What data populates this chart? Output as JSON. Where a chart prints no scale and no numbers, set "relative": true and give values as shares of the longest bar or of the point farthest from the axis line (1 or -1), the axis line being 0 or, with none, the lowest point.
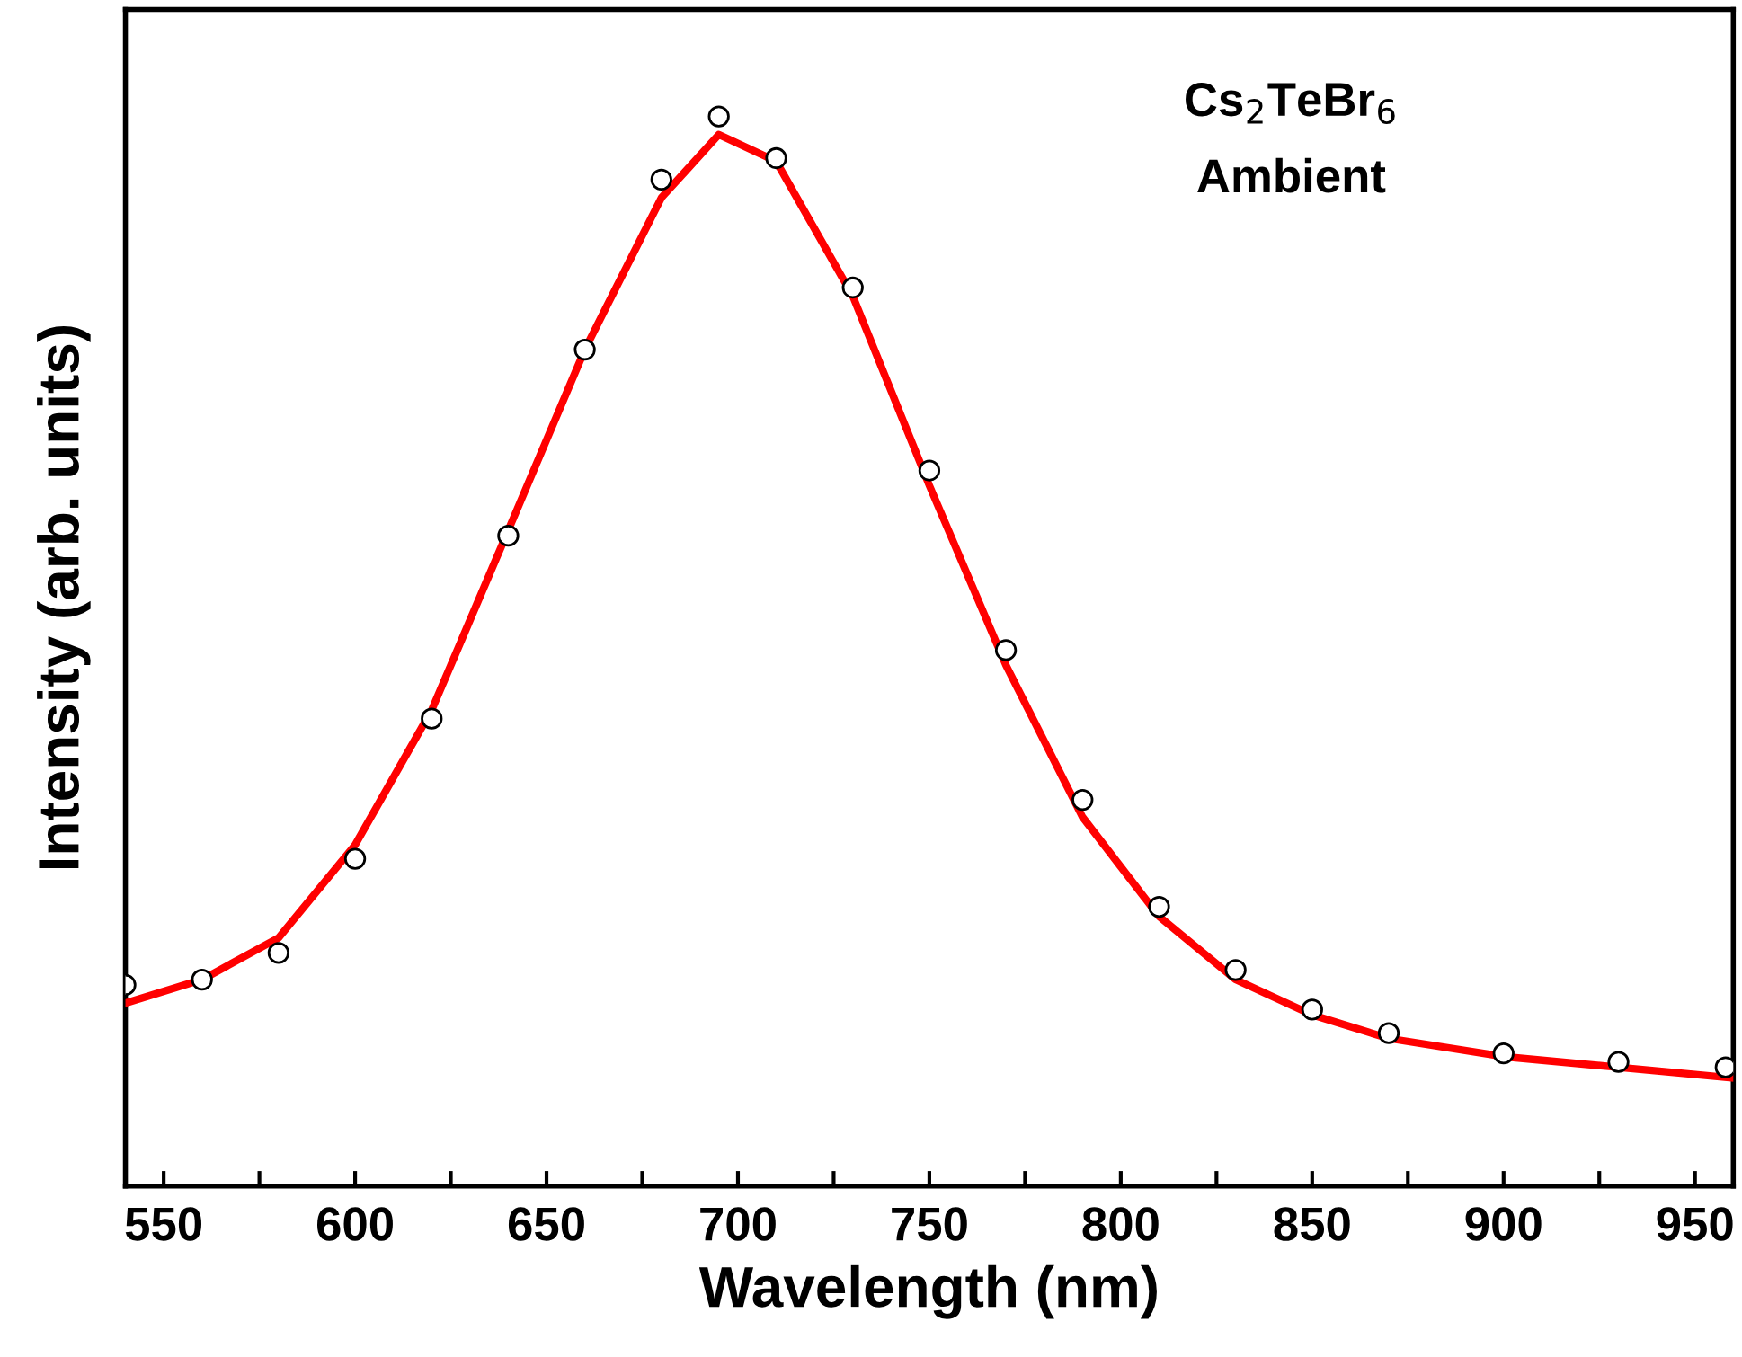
{
  "chart_data": {
    "type": "scatter",
    "xlabel": "Wavelength (nm)",
    "ylabel": "Intensity (arb. units)",
    "relative": true,
    "tick_labels": "x",
    "xlim": [
      540,
      960
    ],
    "xticks": [
      550,
      {
        "value": 575,
        "label": null
      },
      600,
      {
        "value": 625,
        "label": null
      },
      650,
      {
        "value": 675,
        "label": null
      },
      700,
      {
        "value": 725,
        "label": null
      },
      750,
      {
        "value": 775,
        "label": null
      },
      800,
      {
        "value": 825,
        "label": null
      },
      850,
      {
        "value": 875,
        "label": null
      },
      900,
      {
        "value": 925,
        "label": null
      },
      950
    ],
    "annotations": [
      "Cs$_{2}$TeBr$_{6}$",
      "Ambient"
    ],
    "series": [
      {
        "marker": "circle",
        "color": "#000000",
        "x": [
          540,
          560,
          580,
          600,
          620,
          640,
          660,
          680,
          695,
          710,
          730,
          750,
          770,
          790,
          810,
          830,
          850,
          870,
          900,
          930,
          958
        ],
        "values": [
          0.188,
          0.193,
          0.218,
          0.306,
          0.437,
          0.608,
          0.782,
          0.941,
          1.0,
          0.961,
          0.84,
          0.669,
          0.501,
          0.361,
          0.261,
          0.202,
          0.165,
          0.143,
          0.124,
          0.116,
          0.111
        ]
      },
      {
        "type": "line",
        "color": "#ff0000",
        "x": [
          540,
          560,
          580,
          600,
          620,
          640,
          660,
          680,
          695,
          710,
          730,
          750,
          770,
          790,
          810,
          830,
          850,
          870,
          900,
          930,
          960
        ],
        "values": [
          0.171,
          0.193,
          0.232,
          0.319,
          0.445,
          0.613,
          0.782,
          0.924,
          0.983,
          0.958,
          0.832,
          0.655,
          0.487,
          0.345,
          0.252,
          0.193,
          0.16,
          0.138,
          0.121,
          0.111,
          0.101
        ]
      }
    ]
  }
}
